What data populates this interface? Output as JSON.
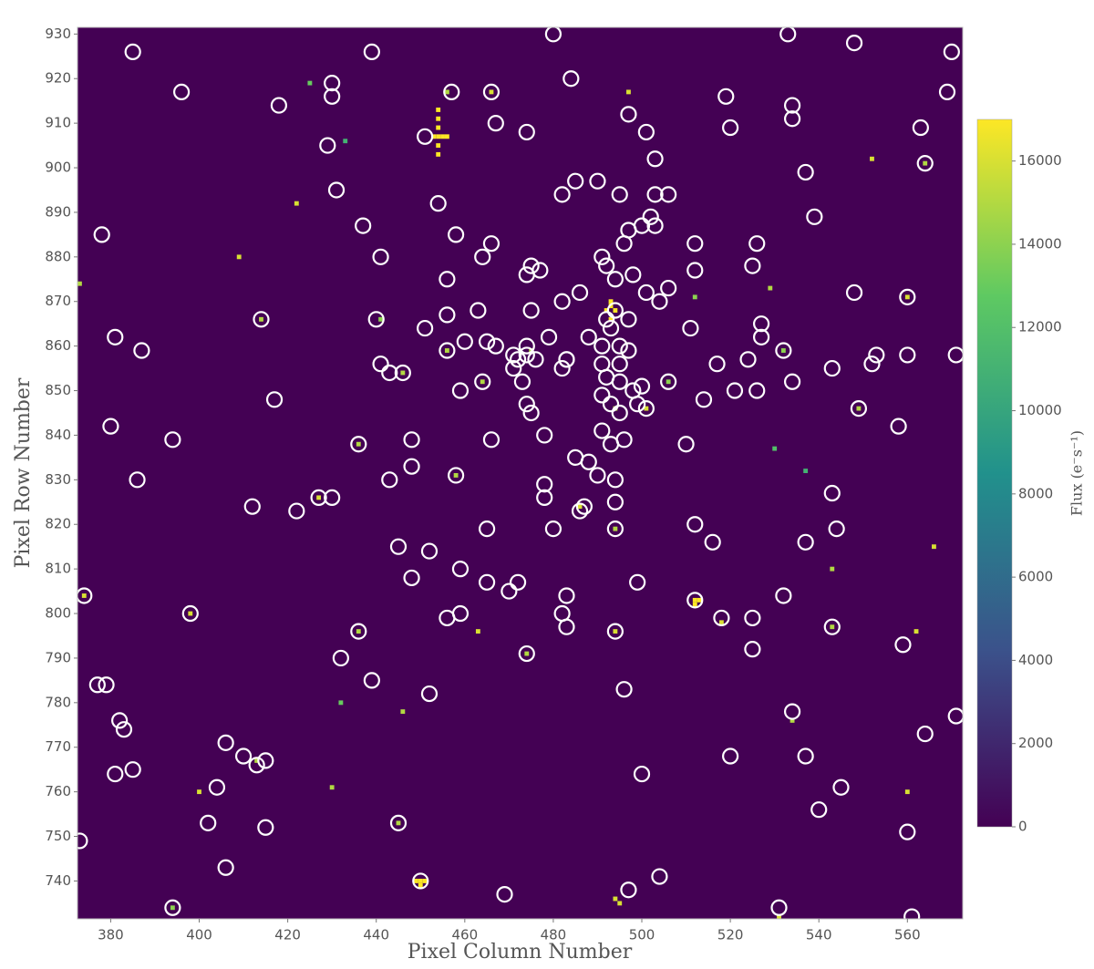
{
  "chart_data": {
    "type": "image",
    "xlabel": "Pixel Column Number",
    "ylabel": "Pixel Row Number",
    "colorbar_label": "Flux (e⁻s⁻¹)",
    "colormap": "viridis",
    "xlim": [
      372.5,
      572.5
    ],
    "ylim": [
      731.5,
      931.5
    ],
    "xticks": [
      380,
      400,
      420,
      440,
      460,
      480,
      500,
      520,
      540,
      560
    ],
    "yticks": [
      740,
      750,
      760,
      770,
      780,
      790,
      800,
      810,
      820,
      830,
      840,
      850,
      860,
      870,
      880,
      890,
      900,
      910,
      920,
      930
    ],
    "clim": [
      0,
      17000
    ],
    "cticks": [
      0,
      2000,
      4000,
      6000,
      8000,
      10000,
      12000,
      14000,
      16000
    ],
    "pixels": {
      "col": [
        454,
        454,
        454,
        454,
        454,
        454,
        453,
        455,
        456,
        493,
        492,
        494,
        493,
        493,
        450,
        449,
        451,
        450,
        512,
        513,
        512,
        409,
        398,
        374,
        494,
        495,
        486,
        425,
        466,
        497,
        456,
        433,
        414,
        441,
        456,
        464,
        506,
        501,
        494,
        549,
        422,
        373,
        436,
        458,
        427,
        494,
        566,
        436,
        463,
        494,
        518,
        543,
        474,
        562,
        432,
        446,
        534,
        430,
        400,
        560,
        445,
        531,
        394,
        552,
        564,
        560,
        529,
        446,
        532,
        543,
        512,
        530,
        537,
        413,
        475
      ],
      "row": [
        903,
        905,
        907,
        909,
        911,
        913,
        907,
        907,
        907,
        869,
        868,
        868,
        870,
        866,
        740,
        740,
        740,
        739,
        803,
        803,
        802,
        880,
        800,
        804,
        736,
        735,
        824,
        919,
        917,
        917,
        917,
        906,
        866,
        866,
        859,
        852,
        852,
        846,
        846,
        846,
        892,
        874,
        838,
        831,
        826,
        819,
        815,
        796,
        796,
        796,
        798,
        797,
        791,
        796,
        780,
        778,
        776,
        761,
        760,
        760,
        753,
        732,
        734,
        902,
        901,
        871,
        873,
        854,
        859,
        810,
        871,
        837,
        832,
        767,
        859
      ],
      "flux": [
        17000,
        17000,
        17000,
        17000,
        17000,
        17000,
        17000,
        17000,
        17000,
        17000,
        17000,
        17000,
        17000,
        17000,
        17000,
        17000,
        17000,
        17000,
        17000,
        17000,
        17000,
        16000,
        16000,
        16000,
        16000,
        16000,
        16000,
        13000,
        16000,
        16000,
        15000,
        11000,
        15000,
        14000,
        15000,
        15000,
        14000,
        16000,
        15000,
        15000,
        16000,
        15000,
        15000,
        15000,
        16000,
        15000,
        16000,
        15000,
        16000,
        16000,
        16000,
        15000,
        15000,
        16000,
        13000,
        15000,
        15000,
        15000,
        16000,
        16000,
        15000,
        16000,
        14000,
        16000,
        15000,
        16000,
        15000,
        15000,
        14000,
        15000,
        14000,
        12000,
        11000,
        15000,
        15000
      ]
    },
    "sources": {
      "x": [
        385,
        396,
        418,
        430,
        430,
        439,
        429,
        431,
        451,
        454,
        457,
        466,
        467,
        474,
        480,
        484,
        485,
        482,
        490,
        495,
        497,
        501,
        503,
        503,
        506,
        519,
        520,
        533,
        534,
        534,
        537,
        548,
        563,
        564,
        569,
        570,
        378,
        437,
        441,
        458,
        456,
        466,
        464,
        474,
        475,
        477,
        486,
        491,
        492,
        494,
        496,
        497,
        500,
        502,
        503,
        498,
        501,
        504,
        506,
        512,
        512,
        525,
        526,
        539,
        548,
        560,
        414,
        440,
        451,
        456,
        463,
        475,
        482,
        492,
        493,
        494,
        497,
        511,
        527,
        527,
        381,
        387,
        456,
        460,
        465,
        467,
        471,
        472,
        474,
        474,
        476,
        479,
        483,
        488,
        491,
        491,
        492,
        495,
        495,
        497,
        495,
        498,
        500,
        491,
        493,
        495,
        499,
        501,
        441,
        443,
        446,
        459,
        464,
        471,
        473,
        474,
        475,
        482,
        483,
        506,
        514,
        517,
        521,
        524,
        526,
        532,
        534,
        543,
        549,
        552,
        553,
        560,
        571,
        417,
        380,
        394,
        436,
        448,
        466,
        478,
        491,
        493,
        496,
        510,
        558,
        448,
        458,
        485,
        488,
        490,
        494,
        478,
        478,
        386,
        443,
        412,
        422,
        427,
        430,
        486,
        494,
        487,
        465,
        480,
        494,
        512,
        516,
        537,
        543,
        544,
        445,
        452,
        459,
        448,
        465,
        470,
        472,
        483,
        499,
        512,
        532,
        374,
        398,
        456,
        459,
        482,
        483,
        494,
        518,
        525,
        525,
        543,
        559,
        436,
        432,
        474,
        377,
        379,
        439,
        452,
        496,
        382,
        383,
        534,
        571,
        564,
        406,
        410,
        413,
        415,
        381,
        385,
        404,
        402,
        415,
        500,
        520,
        537,
        545,
        540,
        445,
        560,
        373,
        406,
        450,
        469,
        497,
        504,
        394,
        531,
        561
      ],
      "y": [
        926,
        917,
        914,
        919,
        916,
        926,
        905,
        895,
        907,
        892,
        917,
        917,
        910,
        908,
        930,
        920,
        897,
        894,
        897,
        894,
        912,
        908,
        902,
        894,
        894,
        916,
        909,
        930,
        914,
        911,
        899,
        928,
        909,
        901,
        917,
        926,
        885,
        887,
        880,
        885,
        875,
        883,
        880,
        876,
        878,
        877,
        872,
        880,
        878,
        875,
        883,
        886,
        887,
        889,
        887,
        876,
        872,
        870,
        873,
        883,
        877,
        878,
        883,
        889,
        872,
        871,
        866,
        866,
        864,
        867,
        868,
        868,
        870,
        866,
        864,
        868,
        866,
        864,
        865,
        862,
        862,
        859,
        859,
        861,
        861,
        860,
        858,
        857,
        858,
        860,
        857,
        862,
        857,
        862,
        860,
        856,
        853,
        860,
        856,
        859,
        852,
        850,
        851,
        849,
        847,
        845,
        847,
        846,
        856,
        854,
        854,
        850,
        852,
        855,
        852,
        847,
        845,
        855,
        857,
        852,
        848,
        856,
        850,
        857,
        850,
        859,
        852,
        855,
        846,
        856,
        858,
        858,
        858,
        848,
        842,
        839,
        838,
        839,
        839,
        840,
        841,
        838,
        839,
        838,
        842,
        833,
        831,
        835,
        834,
        831,
        830,
        829,
        826,
        830,
        830,
        824,
        823,
        826,
        826,
        823,
        825,
        824,
        819,
        819,
        819,
        820,
        816,
        816,
        827,
        819,
        815,
        814,
        810,
        808,
        807,
        805,
        807,
        804,
        807,
        803,
        804,
        804,
        800,
        799,
        800,
        800,
        797,
        796,
        799,
        799,
        792,
        797,
        793,
        796,
        790,
        791,
        784,
        784,
        785,
        782,
        783,
        776,
        774,
        778,
        777,
        773,
        771,
        768,
        766,
        767,
        764,
        765,
        761,
        753,
        752,
        764,
        768,
        768,
        761,
        756,
        753,
        751,
        749,
        743,
        740,
        737,
        738,
        741,
        734,
        734,
        732
      ]
    }
  }
}
